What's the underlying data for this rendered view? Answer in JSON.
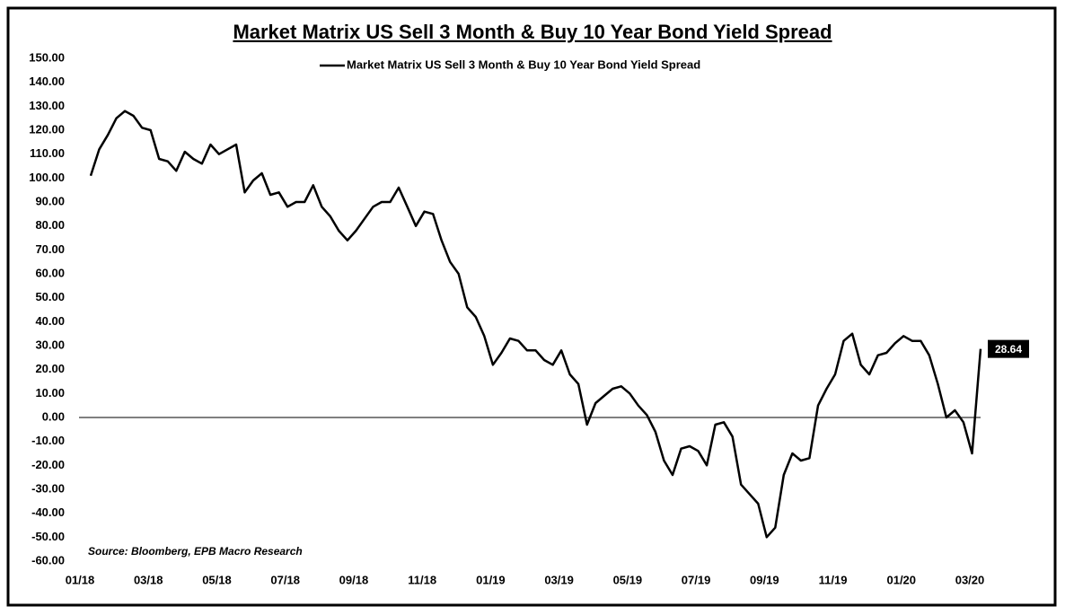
{
  "chart_data": {
    "type": "line",
    "title": "Market Matrix US Sell 3 Month & Buy 10 Year Bond Yield Spread",
    "annotation": "Source: Bloomberg, EPB Macro Research",
    "legend": "top",
    "categories": [
      "01/18",
      null,
      null,
      null,
      null,
      null,
      null,
      null,
      "03/18",
      null,
      null,
      null,
      null,
      null,
      null,
      null,
      "05/18",
      null,
      null,
      null,
      null,
      null,
      null,
      null,
      "07/18",
      null,
      null,
      null,
      null,
      null,
      null,
      null,
      "09/18",
      null,
      null,
      null,
      null,
      null,
      null,
      null,
      "11/18",
      null,
      null,
      null,
      null,
      null,
      null,
      null,
      "01/19",
      null,
      null,
      null,
      null,
      null,
      null,
      null,
      "03/19",
      null,
      null,
      null,
      null,
      null,
      null,
      null,
      "05/19",
      null,
      null,
      null,
      null,
      null,
      null,
      null,
      "07/19",
      null,
      null,
      null,
      null,
      null,
      null,
      null,
      "09/19",
      null,
      null,
      null,
      null,
      null,
      null,
      null,
      "11/19",
      null,
      null,
      null,
      null,
      null,
      null,
      null,
      "01/20",
      null,
      null,
      null,
      null,
      null,
      null,
      null,
      "03/20"
    ],
    "series": [
      {
        "name": "Market Matrix US Sell 3 Month & Buy 10 Year Bond Yield Spread",
        "color": "#000000",
        "values": [
          101,
          112,
          118,
          125,
          128,
          126,
          121,
          120,
          108,
          107,
          103,
          111,
          108,
          106,
          114,
          110,
          112,
          114,
          94,
          99,
          102,
          93,
          94,
          88,
          90,
          90,
          97,
          88,
          84,
          78,
          74,
          78,
          83,
          88,
          90,
          90,
          96,
          88,
          80,
          86,
          85,
          74,
          65,
          60,
          46,
          42,
          34,
          22,
          27,
          33,
          32,
          28,
          28,
          24,
          22,
          28,
          18,
          14,
          -3,
          6,
          9,
          12,
          13,
          10,
          5,
          1,
          -6,
          -18,
          -24,
          -13,
          -12,
          -14,
          -20,
          -3,
          -2,
          -8,
          -28,
          -32,
          -36,
          -50,
          -46,
          -24,
          -15,
          -18,
          -17,
          5,
          12,
          18,
          32,
          35,
          22,
          18,
          26,
          27,
          31,
          34,
          32,
          32,
          26,
          14,
          0,
          3,
          -2,
          -15,
          28.64
        ]
      }
    ],
    "ylim": [
      -60,
      150
    ],
    "yticks": [
      {
        "value": -60,
        "label": "-60.00"
      },
      {
        "value": -50,
        "label": "-50.00"
      },
      {
        "value": -40,
        "label": "-40.00"
      },
      {
        "value": -30,
        "label": "-30.00"
      },
      {
        "value": -20,
        "label": "-20.00"
      },
      {
        "value": -10,
        "label": "-10.00"
      },
      {
        "value": 0,
        "label": "0.00"
      },
      {
        "value": 10,
        "label": "10.00"
      },
      {
        "value": 20,
        "label": "20.00"
      },
      {
        "value": 30,
        "label": "30.00"
      },
      {
        "value": 40,
        "label": "40.00"
      },
      {
        "value": 50,
        "label": "50.00"
      },
      {
        "value": 60,
        "label": "60.00"
      },
      {
        "value": 70,
        "label": "70.00"
      },
      {
        "value": 80,
        "label": "80.00"
      },
      {
        "value": 90,
        "label": "90.00"
      },
      {
        "value": 100,
        "label": "100.00"
      },
      {
        "value": 110,
        "label": "110.00"
      },
      {
        "value": 120,
        "label": "120.00"
      },
      {
        "value": 130,
        "label": "130.00"
      },
      {
        "value": 140,
        "label": "140.00"
      },
      {
        "value": 150,
        "label": "150.00"
      }
    ],
    "grid": false
  }
}
